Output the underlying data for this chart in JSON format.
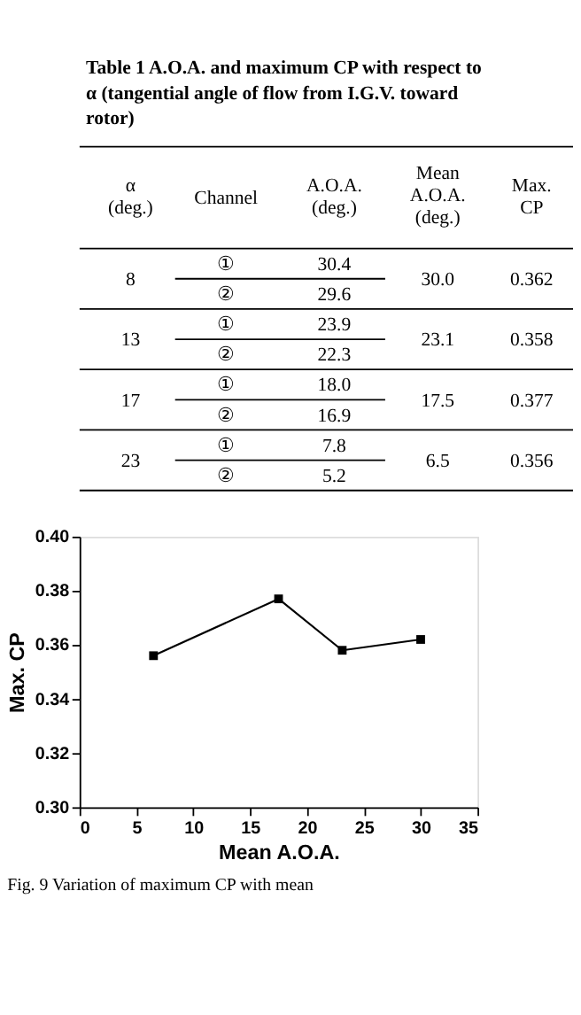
{
  "chart_data": [
    {
      "type": "other",
      "title": "Table 1 A.O.A. and maximum CP with respect to α (tangential angle of flow from I.G.V. toward rotor)",
      "annotations": [
        "α\n(deg.)",
        "Channel",
        "A.O.A.\n(deg.)",
        "Mean\nA.O.A.\n(deg.)",
        "Max.\nCP",
        "8",
        "①",
        "30.4",
        "30.0",
        "0.362",
        "②",
        "29.6",
        "13",
        "①",
        "23.9",
        "23.1",
        "0.358",
        "②",
        "22.3",
        "17",
        "①",
        "18.0",
        "17.5",
        "0.377",
        "②",
        "16.9",
        "23",
        "①",
        "7.8",
        "6.5",
        "0.356",
        "②",
        "5.2"
      ]
    },
    {
      "type": "line",
      "xlabel": "Mean A.O.A.",
      "ylabel": "Max. CP",
      "x": [
        6.5,
        17.5,
        23.1,
        30.0
      ],
      "series": [
        {
          "color": "#000000",
          "values": [
            0.356,
            0.377,
            0.358,
            0.362
          ]
        }
      ],
      "xlim": [
        0,
        35
      ],
      "xticks": [
        0,
        5,
        10,
        15,
        20,
        25,
        30,
        35
      ],
      "ylim": [
        0.3,
        0.4
      ],
      "yticks": [
        {
          "value": 0.3,
          "label": "0.30"
        },
        {
          "value": 0.32,
          "label": "0.32"
        },
        {
          "value": 0.34,
          "label": "0.34"
        },
        {
          "value": 0.36,
          "label": "0.36"
        },
        {
          "value": 0.38,
          "label": "0.38"
        },
        {
          "value": 0.4,
          "label": "0.40"
        }
      ],
      "marker": "square",
      "line_style": "solid",
      "grid": false,
      "annotations": [
        "Fig. 9 Variation of maximum CP with mean"
      ]
    }
  ]
}
